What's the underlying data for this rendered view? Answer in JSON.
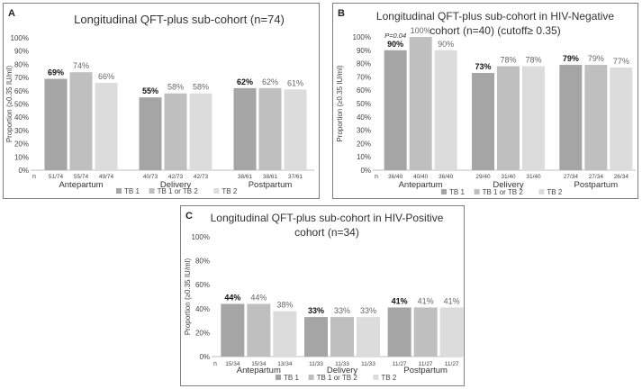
{
  "chart_data": [
    {
      "panel": "A",
      "type": "bar",
      "title": "Longitudinal QFT-plus sub-cohort (n=74)",
      "ylabel": "Proportion (≥0.35 IU/ml)",
      "ylim": [
        0,
        100
      ],
      "yticks": [
        "0%",
        "10%",
        "20%",
        "30%",
        "40%",
        "50%",
        "60%",
        "70%",
        "80%",
        "90%",
        "100%"
      ],
      "categories": [
        "Antepartum",
        "Delivery",
        "Postpartum"
      ],
      "n_label": "n",
      "p_value": "",
      "series": [
        {
          "name": "TB 1",
          "color": "#a5a5a5",
          "values": [
            69,
            55,
            62
          ],
          "labels": [
            "69%",
            "55%",
            "62%"
          ],
          "counts": [
            "51/74",
            "40/73",
            "38/61"
          ]
        },
        {
          "name": "TB 1 or TB 2",
          "color": "#bfbfbf",
          "values": [
            74,
            58,
            62
          ],
          "labels": [
            "74%",
            "58%",
            "62%"
          ],
          "counts": [
            "55/74",
            "42/73",
            "38/61"
          ]
        },
        {
          "name": "TB 2",
          "color": "#dcdcdc",
          "values": [
            66,
            58,
            61
          ],
          "labels": [
            "66%",
            "58%",
            "61%"
          ],
          "counts": [
            "49/74",
            "42/73",
            "37/61"
          ]
        }
      ]
    },
    {
      "panel": "B",
      "type": "bar",
      "title": "Longitudinal QFT-plus sub-cohort in HIV-Negative cohort (n=40) (cutoff≥ 0.35)",
      "ylabel": "Proportion (≥0.35 IU/ml)",
      "ylim": [
        0,
        100
      ],
      "yticks": [
        "0%",
        "10%",
        "20%",
        "30%",
        "40%",
        "50%",
        "60%",
        "70%",
        "80%",
        "90%",
        "100%"
      ],
      "categories": [
        "Antepartum",
        "Delivery",
        "Postpartum"
      ],
      "n_label": "n",
      "p_value": "P=0.04",
      "series": [
        {
          "name": "TB 1",
          "color": "#a5a5a5",
          "values": [
            90,
            73,
            79
          ],
          "labels": [
            "90%",
            "73%",
            "79%"
          ],
          "counts": [
            "36/40",
            "29/40",
            "27/34"
          ]
        },
        {
          "name": "TB 1 or TB 2",
          "color": "#bfbfbf",
          "values": [
            100,
            78,
            79
          ],
          "labels": [
            "100%",
            "78%",
            "79%"
          ],
          "counts": [
            "40/40",
            "31/40",
            "27/34"
          ]
        },
        {
          "name": "TB 2",
          "color": "#dcdcdc",
          "values": [
            90,
            78,
            77
          ],
          "labels": [
            "90%",
            "78%",
            "77%"
          ],
          "counts": [
            "36/40",
            "31/40",
            "26/34"
          ]
        }
      ]
    },
    {
      "panel": "C",
      "type": "bar",
      "title": "Longitudinal QFT-plus sub-cohort in HIV-Positive cohort (n=34)",
      "ylabel": "Proportion (≥0.35 IU/ml)",
      "ylim": [
        0,
        100
      ],
      "yticks": [
        "0%",
        "20%",
        "40%",
        "60%",
        "80%",
        "100%"
      ],
      "categories": [
        "Antepartum",
        "Delivery",
        "Postpartum"
      ],
      "n_label": "n",
      "p_value": "",
      "series": [
        {
          "name": "TB 1",
          "color": "#a5a5a5",
          "values": [
            44,
            33,
            41
          ],
          "labels": [
            "44%",
            "33%",
            "41%"
          ],
          "counts": [
            "15/34",
            "11/33",
            "11/27"
          ]
        },
        {
          "name": "TB 1 or TB 2",
          "color": "#bfbfbf",
          "values": [
            44,
            33,
            41
          ],
          "labels": [
            "44%",
            "33%",
            "41%"
          ],
          "counts": [
            "15/34",
            "11/33",
            "11/27"
          ]
        },
        {
          "name": "TB 2",
          "color": "#dcdcdc",
          "values": [
            38,
            33,
            41
          ],
          "labels": [
            "38%",
            "33%",
            "41%"
          ],
          "counts": [
            "13/34",
            "11/33",
            "11/27"
          ]
        }
      ]
    }
  ],
  "panels": [
    {
      "label": "A",
      "title": "Longitudinal QFT-plus sub-cohort (n=74)"
    },
    {
      "label": "B",
      "title": "Longitudinal QFT-plus sub-cohort in HIV-Negative cohort (n=40) (cutoff≥ 0.35)"
    },
    {
      "label": "C",
      "title": "Longitudinal QFT-plus sub-cohort in HIV-Positive cohort (n=34)"
    }
  ]
}
